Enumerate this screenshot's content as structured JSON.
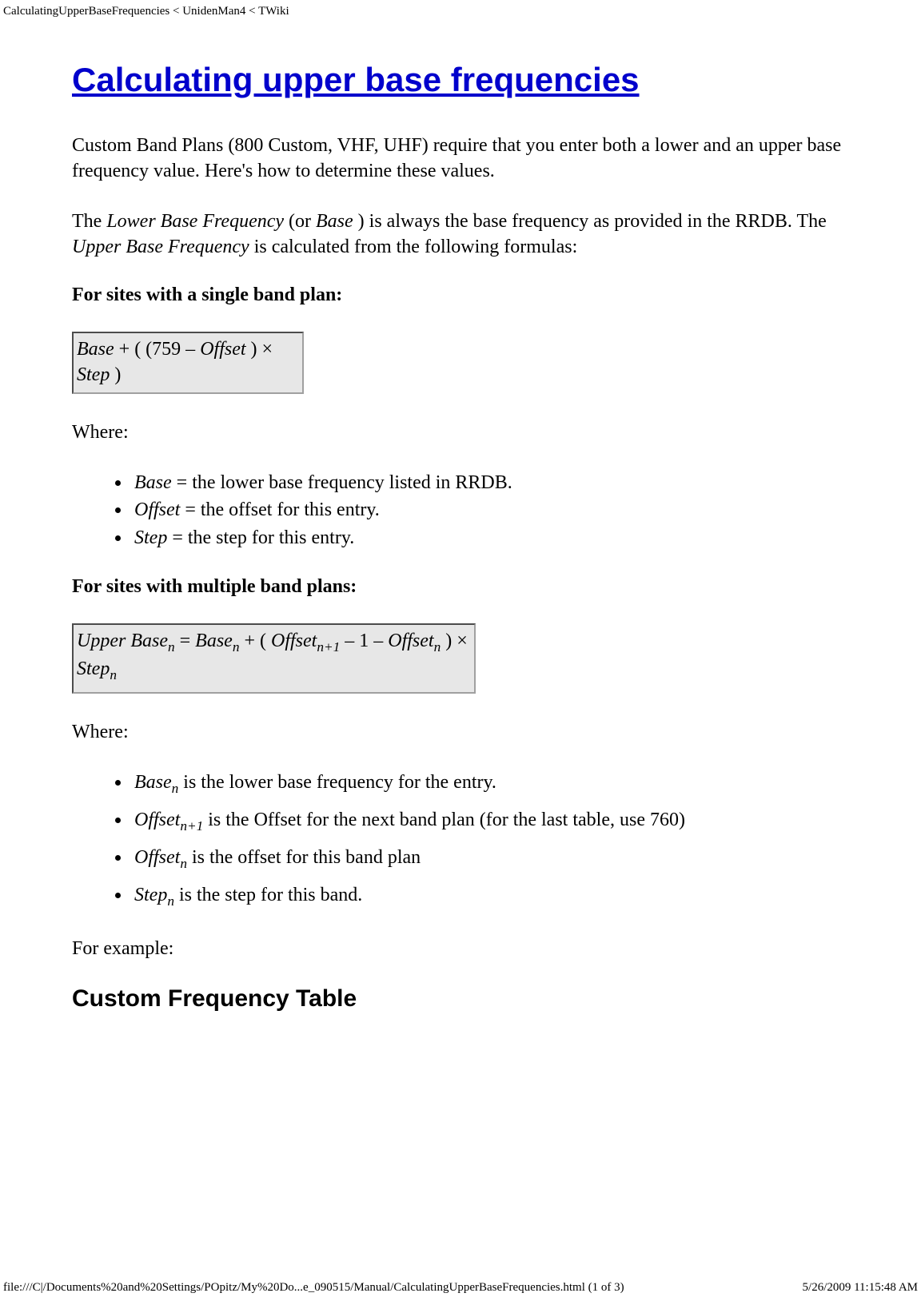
{
  "header": {
    "breadcrumb": "CalculatingUpperBaseFrequencies < UnidenMan4 < TWiki"
  },
  "title": "Calculating upper base frequencies",
  "intro1_a": "Custom Band Plans (800 Custom, VHF, UHF) require that you enter both a lower and an upper base frequency value. Here's how to determine these values.",
  "intro2_pre": "The ",
  "intro2_i1": "Lower Base Frequency",
  "intro2_mid1": " (or ",
  "intro2_i2": "Base",
  "intro2_mid2": " ) is always the base frequency as provided in the RRDB. The ",
  "intro2_i3": "Upper Base Frequency",
  "intro2_post": " is calculated from the following formulas:",
  "single_label": "For sites with a single band plan:",
  "formula_single": {
    "a": "Base",
    "b": " + ( (759 – ",
    "c": "Offset",
    "d": " ) × ",
    "e": "Step",
    "f": " )"
  },
  "where": "Where:",
  "defs1": {
    "base_i": "Base",
    "base_t": " = the lower base frequency listed in RRDB.",
    "offset_i": "Offset",
    "offset_t": " = the offset for this entry.",
    "step_i": "Step",
    "step_t": " = the step for this entry."
  },
  "multi_label": "For sites with multiple band plans:",
  "formula_multi": {
    "ub": "Upper Base",
    "sub_n": "n",
    "eq": " = ",
    "base": "Base",
    "plus_open": " + ( ",
    "offset": "Offset",
    "sub_np1": "n+1",
    "minus1": " – 1 – ",
    "close_times": " ) × ",
    "step": "Step"
  },
  "defs2": {
    "base_i": "Base",
    "base_t": " is the lower base frequency for the entry.",
    "off_np1_i": "Offset",
    "off_np1_t": " is the Offset for the next band plan (for the last table, use 760)",
    "off_n_i": "Offset",
    "off_n_t": " is the offset for this band plan",
    "step_i": "Step",
    "step_t": " is the step for this band."
  },
  "example": "For example:",
  "subhead": "Custom Frequency Table",
  "footer": {
    "left": "file:///C|/Documents%20and%20Settings/POpitz/My%20Do...e_090515/Manual/CalculatingUpperBaseFrequencies.html (1 of 3)",
    "right": "5/26/2009 11:15:48 AM"
  }
}
